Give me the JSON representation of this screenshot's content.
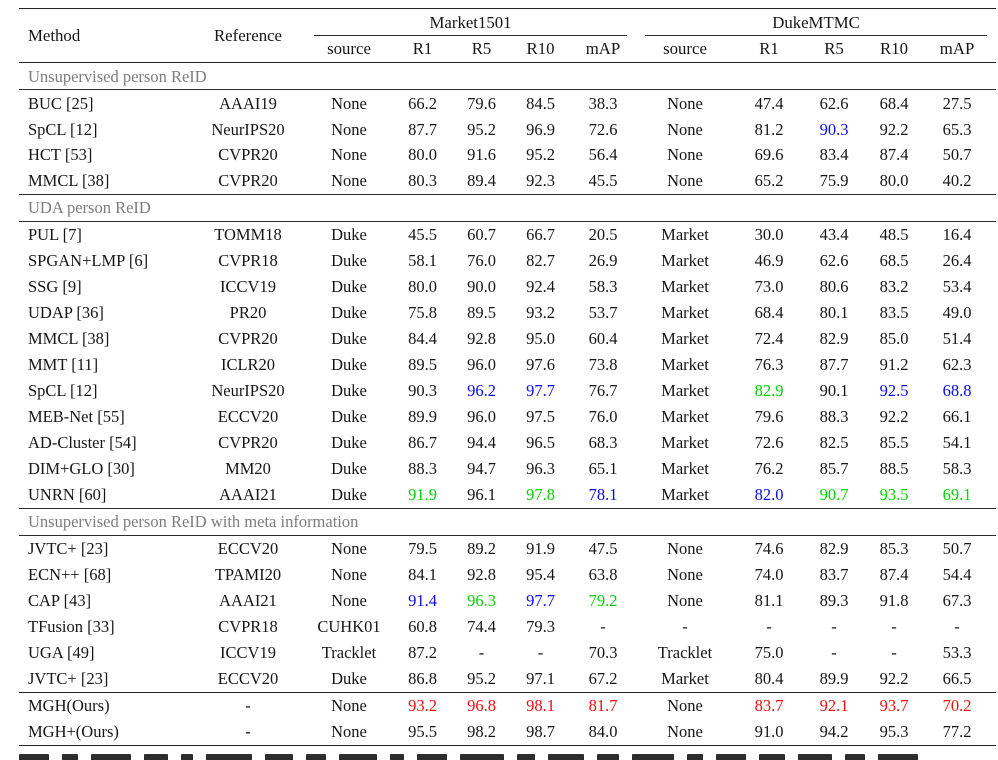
{
  "colors": {
    "blue": "#0a0aee",
    "green": "#00d600",
    "red": "#ee0e0e",
    "section_gray": "#7d7d7d",
    "rule": "#222222"
  },
  "table": {
    "headers": {
      "method": "Method",
      "reference": "Reference"
    },
    "groups": [
      {
        "label": "Market1501"
      },
      {
        "label": "DukeMTMC"
      }
    ],
    "sub_headers": [
      "source",
      "R1",
      "R5",
      "R10",
      "mAP",
      "source",
      "R1",
      "R5",
      "R10",
      "mAP"
    ],
    "sections": [
      {
        "title": "Unsupervised person ReID",
        "rows": [
          {
            "method": "BUC [25]",
            "reference": "AAAI19",
            "values": [
              "None",
              "66.2",
              "79.6",
              "84.5",
              "38.3",
              "None",
              "47.4",
              "62.6",
              "68.4",
              "27.5"
            ]
          },
          {
            "method": "SpCL [12]",
            "reference": "NeurIPS20",
            "values": [
              "None",
              "87.7",
              "95.2",
              "96.9",
              "72.6",
              "None",
              "81.2",
              "90.3",
              "92.2",
              "65.3"
            ],
            "colors": {
              "7": "blue"
            }
          },
          {
            "method": "HCT [53]",
            "reference": "CVPR20",
            "values": [
              "None",
              "80.0",
              "91.6",
              "95.2",
              "56.4",
              "None",
              "69.6",
              "83.4",
              "87.4",
              "50.7"
            ]
          },
          {
            "method": "MMCL [38]",
            "reference": "CVPR20",
            "values": [
              "None",
              "80.3",
              "89.4",
              "92.3",
              "45.5",
              "None",
              "65.2",
              "75.9",
              "80.0",
              "40.2"
            ]
          }
        ]
      },
      {
        "title": "UDA person ReID",
        "rows": [
          {
            "method": "PUL [7]",
            "reference": "TOMM18",
            "values": [
              "Duke",
              "45.5",
              "60.7",
              "66.7",
              "20.5",
              "Market",
              "30.0",
              "43.4",
              "48.5",
              "16.4"
            ]
          },
          {
            "method": "SPGAN+LMP [6]",
            "reference": "CVPR18",
            "values": [
              "Duke",
              "58.1",
              "76.0",
              "82.7",
              "26.9",
              "Market",
              "46.9",
              "62.6",
              "68.5",
              "26.4"
            ]
          },
          {
            "method": "SSG [9]",
            "reference": "ICCV19",
            "values": [
              "Duke",
              "80.0",
              "90.0",
              "92.4",
              "58.3",
              "Market",
              "73.0",
              "80.6",
              "83.2",
              "53.4"
            ]
          },
          {
            "method": "UDAP [36]",
            "reference": "PR20",
            "values": [
              "Duke",
              "75.8",
              "89.5",
              "93.2",
              "53.7",
              "Market",
              "68.4",
              "80.1",
              "83.5",
              "49.0"
            ]
          },
          {
            "method": "MMCL [38]",
            "reference": "CVPR20",
            "values": [
              "Duke",
              "84.4",
              "92.8",
              "95.0",
              "60.4",
              "Market",
              "72.4",
              "82.9",
              "85.0",
              "51.4"
            ]
          },
          {
            "method": "MMT [11]",
            "reference": "ICLR20",
            "values": [
              "Duke",
              "89.5",
              "96.0",
              "97.6",
              "73.8",
              "Market",
              "76.3",
              "87.7",
              "91.2",
              "62.3"
            ]
          },
          {
            "method": "SpCL [12]",
            "reference": "NeurIPS20",
            "values": [
              "Duke",
              "90.3",
              "96.2",
              "97.7",
              "76.7",
              "Market",
              "82.9",
              "90.1",
              "92.5",
              "68.8"
            ],
            "colors": {
              "2": "blue",
              "3": "blue",
              "6": "green",
              "8": "blue",
              "9": "blue"
            }
          },
          {
            "method": "MEB-Net [55]",
            "reference": "ECCV20",
            "values": [
              "Duke",
              "89.9",
              "96.0",
              "97.5",
              "76.0",
              "Market",
              "79.6",
              "88.3",
              "92.2",
              "66.1"
            ]
          },
          {
            "method": "AD-Cluster [54]",
            "reference": "CVPR20",
            "values": [
              "Duke",
              "86.7",
              "94.4",
              "96.5",
              "68.3",
              "Market",
              "72.6",
              "82.5",
              "85.5",
              "54.1"
            ]
          },
          {
            "method": "DIM+GLO [30]",
            "reference": "MM20",
            "values": [
              "Duke",
              "88.3",
              "94.7",
              "96.3",
              "65.1",
              "Market",
              "76.2",
              "85.7",
              "88.5",
              "58.3"
            ]
          },
          {
            "method": "UNRN [60]",
            "reference": "AAAI21",
            "values": [
              "Duke",
              "91.9",
              "96.1",
              "97.8",
              "78.1",
              "Market",
              "82.0",
              "90.7",
              "93.5",
              "69.1"
            ],
            "colors": {
              "1": "green",
              "3": "green",
              "4": "blue",
              "6": "blue",
              "7": "green",
              "8": "green",
              "9": "green"
            }
          }
        ]
      },
      {
        "title": "Unsupervised person ReID with meta information",
        "rows": [
          {
            "method": "JVTC+ [23]",
            "reference": "ECCV20",
            "values": [
              "None",
              "79.5",
              "89.2",
              "91.9",
              "47.5",
              "None",
              "74.6",
              "82.9",
              "85.3",
              "50.7"
            ]
          },
          {
            "method": "ECN++ [68]",
            "reference": "TPAMI20",
            "values": [
              "None",
              "84.1",
              "92.8",
              "95.4",
              "63.8",
              "None",
              "74.0",
              "83.7",
              "87.4",
              "54.4"
            ]
          },
          {
            "method": "CAP [43]",
            "reference": "AAAI21",
            "values": [
              "None",
              "91.4",
              "96.3",
              "97.7",
              "79.2",
              "None",
              "81.1",
              "89.3",
              "91.8",
              "67.3"
            ],
            "colors": {
              "1": "blue",
              "2": "green",
              "3": "blue",
              "4": "green"
            }
          },
          {
            "method": "TFusion [33]",
            "reference": "CVPR18",
            "values": [
              "CUHK01",
              "60.8",
              "74.4",
              "79.3",
              "-",
              "-",
              "-",
              "-",
              "-",
              "-"
            ]
          },
          {
            "method": "UGA [49]",
            "reference": "ICCV19",
            "values": [
              "Tracklet",
              "87.2",
              "-",
              "-",
              "70.3",
              "Tracklet",
              "75.0",
              "-",
              "-",
              "53.3"
            ]
          },
          {
            "method": "JVTC+ [23]",
            "reference": "ECCV20",
            "values": [
              "Duke",
              "86.8",
              "95.2",
              "97.1",
              "67.2",
              "Market",
              "80.4",
              "89.9",
              "92.2",
              "66.5"
            ]
          }
        ]
      },
      {
        "title": null,
        "rows": [
          {
            "method": "MGH(Ours)",
            "reference": "-",
            "values": [
              "None",
              "93.2",
              "96.8",
              "98.1",
              "81.7",
              "None",
              "83.7",
              "92.1",
              "93.7",
              "70.2"
            ],
            "colors": {
              "1": "red",
              "2": "red",
              "3": "red",
              "4": "red",
              "6": "red",
              "7": "red",
              "8": "red",
              "9": "red"
            }
          },
          {
            "method": "MGH+(Ours)",
            "reference": "-",
            "values": [
              "None",
              "95.5",
              "98.2",
              "98.7",
              "84.0",
              "None",
              "91.0",
              "94.2",
              "95.3",
              "77.2"
            ]
          }
        ]
      }
    ]
  }
}
